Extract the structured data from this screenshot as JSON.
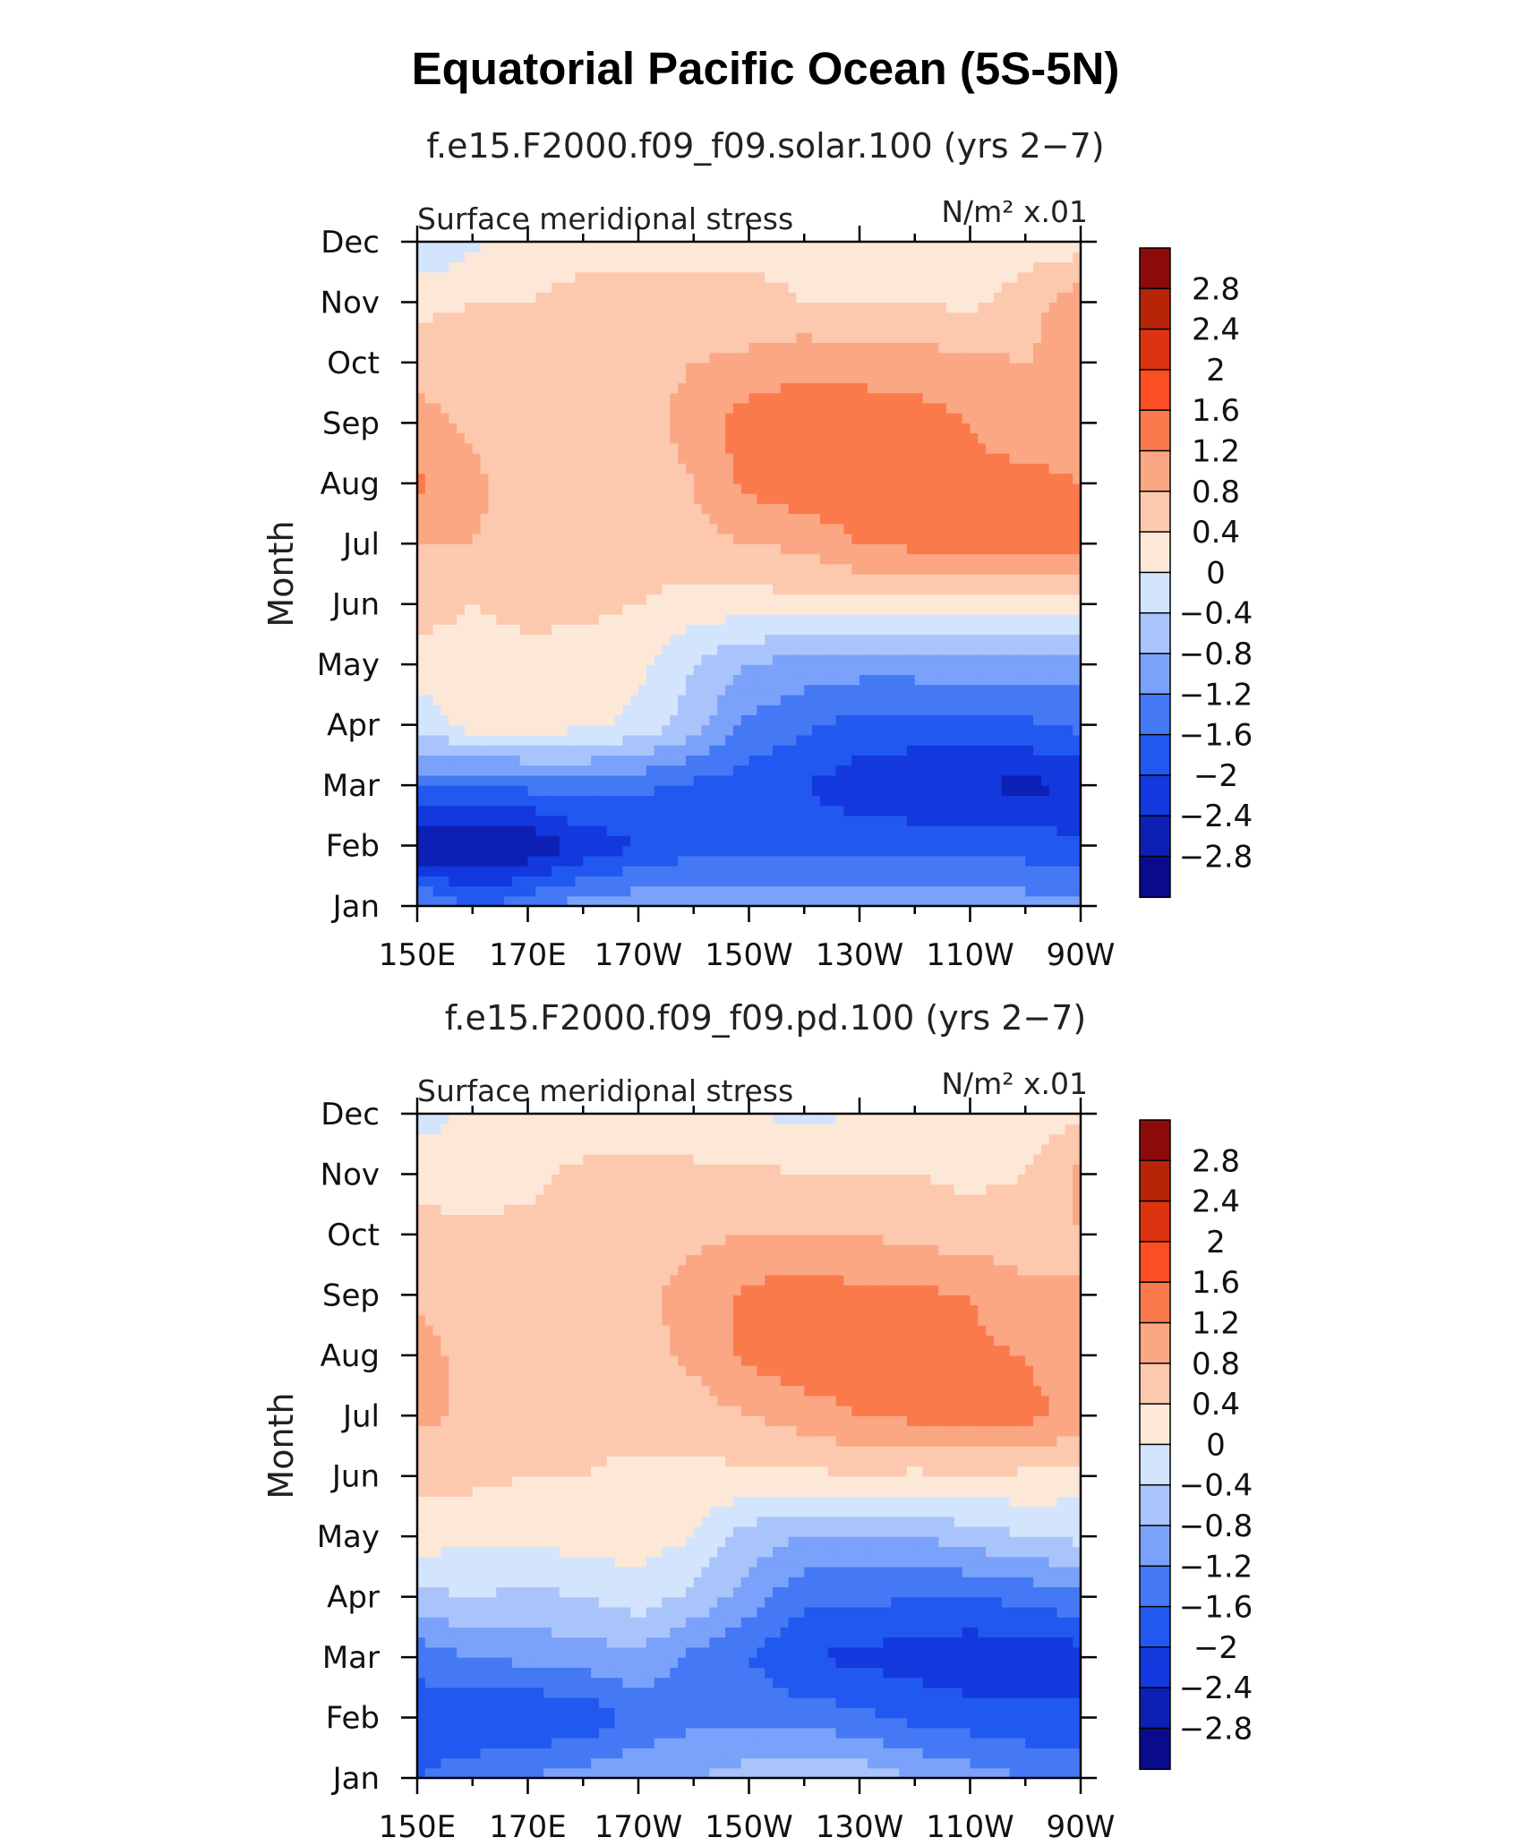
{
  "figure": {
    "title": "Equatorial Pacific Ocean (5S-5N)"
  },
  "chart_data": [
    {
      "type": "heatmap",
      "subtitle": "f.e15.F2000.f09_f09.solar.100 (yrs 2−7)",
      "left_label": "Surface meridional stress",
      "units_label": "N/m² x.01",
      "ylabel": "Month",
      "xlabel": "",
      "x_ticks": [
        "150E",
        "170E",
        "170W",
        "150W",
        "130W",
        "110W",
        "90W"
      ],
      "y_ticks": [
        "Jan",
        "Feb",
        "Mar",
        "Apr",
        "May",
        "Jun",
        "Jul",
        "Aug",
        "Sep",
        "Oct",
        "Nov",
        "Dec"
      ],
      "nx": 13,
      "grid": [
        [
          -1.0,
          -1.7,
          -1.3,
          -1.0,
          -0.9,
          -0.8,
          -0.9,
          -0.9,
          -0.9,
          -0.9,
          -0.9,
          -1.0,
          -1.0
        ],
        [
          -2.9,
          -2.8,
          -2.8,
          -2.3,
          -2.0,
          -1.8,
          -1.8,
          -1.8,
          -1.8,
          -1.8,
          -1.8,
          -1.8,
          -1.9
        ],
        [
          -1.5,
          -1.6,
          -1.5,
          -1.4,
          -1.5,
          -1.7,
          -1.8,
          -2.0,
          -2.2,
          -2.3,
          -2.4,
          -2.5,
          -2.4
        ],
        [
          -0.3,
          0.2,
          0.2,
          0.1,
          -0.1,
          -0.6,
          -1.3,
          -1.5,
          -1.8,
          -1.8,
          -1.8,
          -1.7,
          -1.5
        ],
        [
          0.2,
          0.2,
          0.3,
          0.2,
          0.1,
          -0.4,
          -0.8,
          -1.0,
          -1.0,
          -1.0,
          -0.9,
          -0.9,
          -1.0
        ],
        [
          0.6,
          0.4,
          0.5,
          0.5,
          0.4,
          0.2,
          0.2,
          0.3,
          0.3,
          0.3,
          0.2,
          0.2,
          0.2
        ],
        [
          0.8,
          0.8,
          0.6,
          0.6,
          0.6,
          0.7,
          0.8,
          0.9,
          1.2,
          1.3,
          1.5,
          1.5,
          1.4
        ],
        [
          1.3,
          0.9,
          0.6,
          0.5,
          0.5,
          0.8,
          1.3,
          1.5,
          1.5,
          1.4,
          1.3,
          1.3,
          1.2
        ],
        [
          1.0,
          0.7,
          0.6,
          0.5,
          0.6,
          1.0,
          1.4,
          1.5,
          1.5,
          1.4,
          1.2,
          1.0,
          1.1
        ],
        [
          0.6,
          0.6,
          0.6,
          0.6,
          0.6,
          0.8,
          0.9,
          1.1,
          1.0,
          1.0,
          0.9,
          0.8,
          1.0
        ],
        [
          0.3,
          0.4,
          0.4,
          0.5,
          0.5,
          0.5,
          0.5,
          0.4,
          0.4,
          0.4,
          0.3,
          0.6,
          1.1
        ],
        [
          -0.4,
          -0.1,
          0.2,
          0.3,
          0.3,
          0.3,
          0.3,
          0.3,
          0.2,
          0.2,
          0.1,
          0.2,
          0.2
        ]
      ],
      "colorbar": {
        "levels": [
          "2.8",
          "2.4",
          "2",
          "1.6",
          "1.2",
          "0.8",
          "0.4",
          "0",
          "−0.4",
          "−0.8",
          "−1.2",
          "−1.6",
          "−2",
          "−2.4",
          "−2.8"
        ]
      }
    },
    {
      "type": "heatmap",
      "subtitle": "f.e15.F2000.f09_f09.pd.100 (yrs 2−7)",
      "left_label": "Surface meridional stress",
      "units_label": "N/m² x.01",
      "ylabel": "Month",
      "xlabel": "",
      "x_ticks": [
        "150E",
        "170E",
        "170W",
        "150W",
        "130W",
        "110W",
        "90W"
      ],
      "y_ticks": [
        "Jan",
        "Feb",
        "Mar",
        "Apr",
        "May",
        "Jun",
        "Jul",
        "Aug",
        "Sep",
        "Oct",
        "Nov",
        "Dec"
      ],
      "nx": 13,
      "grid": [
        [
          -1.6,
          -1.4,
          -1.2,
          -1.0,
          -0.9,
          -0.8,
          -0.6,
          -0.4,
          -0.5,
          -0.8,
          -1.0,
          -1.2,
          -1.3
        ],
        [
          -1.8,
          -1.9,
          -2.0,
          -1.9,
          -1.5,
          -1.3,
          -1.3,
          -1.4,
          -1.5,
          -1.7,
          -1.8,
          -1.9,
          -1.9
        ],
        [
          -1.5,
          -1.2,
          -1.1,
          -1.0,
          -0.9,
          -1.3,
          -1.6,
          -2.0,
          -2.1,
          -2.2,
          -2.3,
          -2.3,
          -2.2
        ],
        [
          -0.5,
          -0.4,
          -0.5,
          -0.4,
          -0.2,
          -0.5,
          -1.0,
          -1.5,
          -1.5,
          -1.6,
          -1.6,
          -1.5,
          -1.3
        ],
        [
          0.2,
          0.1,
          0.1,
          0.2,
          0.2,
          0.0,
          -0.6,
          -0.8,
          -0.9,
          -0.8,
          -0.6,
          -0.4,
          -0.3
        ],
        [
          0.5,
          0.5,
          0.4,
          0.4,
          0.3,
          0.3,
          0.3,
          0.3,
          0.4,
          0.3,
          0.4,
          0.3,
          0.2
        ],
        [
          0.9,
          0.7,
          0.5,
          0.5,
          0.6,
          0.6,
          0.8,
          1.0,
          1.2,
          1.3,
          1.3,
          1.3,
          1.1
        ],
        [
          1.0,
          0.6,
          0.5,
          0.5,
          0.6,
          0.9,
          1.3,
          1.5,
          1.4,
          1.3,
          1.3,
          1.2,
          1.0
        ],
        [
          0.7,
          0.6,
          0.5,
          0.6,
          0.7,
          1.0,
          1.3,
          1.4,
          1.3,
          1.3,
          1.2,
          0.9,
          0.8
        ],
        [
          0.5,
          0.5,
          0.5,
          0.5,
          0.6,
          0.7,
          0.8,
          0.8,
          0.8,
          0.7,
          0.6,
          0.6,
          0.8
        ],
        [
          0.3,
          0.2,
          0.3,
          0.5,
          0.5,
          0.5,
          0.5,
          0.4,
          0.4,
          0.4,
          0.3,
          0.4,
          0.9
        ],
        [
          -0.2,
          0.1,
          0.1,
          0.1,
          0.1,
          0.1,
          0.0,
          -0.1,
          0.0,
          0.1,
          0.1,
          0.2,
          0.3
        ]
      ],
      "colorbar": {
        "levels": [
          "2.8",
          "2.4",
          "2",
          "1.6",
          "1.2",
          "0.8",
          "0.4",
          "0",
          "−0.4",
          "−0.8",
          "−1.2",
          "−1.6",
          "−2",
          "−2.4",
          "−2.8"
        ]
      }
    }
  ],
  "palette": [
    "#0a0a8c",
    "#0c20b5",
    "#1238de",
    "#2058f0",
    "#4478f5",
    "#7ba2fa",
    "#a9c4fb",
    "#d3e4fd",
    "#fde8d8",
    "#fcc9ae",
    "#fca784",
    "#fb7a4c",
    "#fa4f24",
    "#dc3410",
    "#b82408",
    "#8c0a0a"
  ]
}
